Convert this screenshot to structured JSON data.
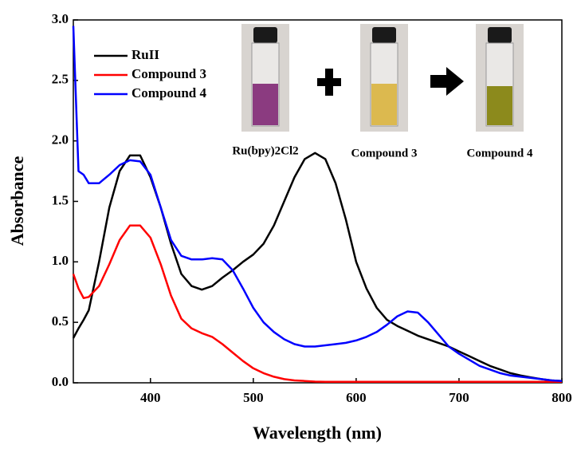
{
  "chart_data": {
    "type": "line",
    "x_label": "Wavelength (nm)",
    "y_label": "Absorbance",
    "x": [
      325,
      330,
      335,
      340,
      350,
      360,
      370,
      380,
      390,
      400,
      410,
      420,
      430,
      440,
      450,
      460,
      470,
      480,
      490,
      500,
      510,
      520,
      530,
      540,
      550,
      560,
      570,
      580,
      590,
      600,
      610,
      620,
      630,
      640,
      650,
      660,
      670,
      680,
      690,
      700,
      710,
      720,
      730,
      740,
      750,
      760,
      770,
      780,
      790,
      800
    ],
    "series": [
      {
        "name": "RuII",
        "color": "#000000",
        "values": [
          0.37,
          0.45,
          0.52,
          0.6,
          1.0,
          1.45,
          1.75,
          1.88,
          1.88,
          1.7,
          1.45,
          1.15,
          0.9,
          0.8,
          0.77,
          0.8,
          0.87,
          0.93,
          1.0,
          1.06,
          1.15,
          1.3,
          1.5,
          1.7,
          1.85,
          1.9,
          1.85,
          1.65,
          1.35,
          1.0,
          0.78,
          0.62,
          0.52,
          0.47,
          0.43,
          0.39,
          0.36,
          0.33,
          0.3,
          0.26,
          0.22,
          0.18,
          0.14,
          0.11,
          0.08,
          0.06,
          0.045,
          0.03,
          0.02,
          0.015
        ]
      },
      {
        "name": "Compound 3",
        "color": "#ff0000",
        "values": [
          0.9,
          0.78,
          0.7,
          0.71,
          0.8,
          0.98,
          1.18,
          1.3,
          1.3,
          1.2,
          0.98,
          0.72,
          0.53,
          0.45,
          0.41,
          0.38,
          0.32,
          0.25,
          0.18,
          0.12,
          0.08,
          0.05,
          0.03,
          0.02,
          0.015,
          0.01,
          0.008,
          0.008,
          0.008,
          0.008,
          0.008,
          0.008,
          0.008,
          0.008,
          0.008,
          0.008,
          0.008,
          0.008,
          0.008,
          0.008,
          0.008,
          0.008,
          0.008,
          0.008,
          0.008,
          0.008,
          0.008,
          0.008,
          0.008,
          0.008
        ]
      },
      {
        "name": "Compound 4",
        "color": "#0000ff",
        "values": [
          2.95,
          1.75,
          1.72,
          1.65,
          1.65,
          1.72,
          1.8,
          1.84,
          1.83,
          1.72,
          1.45,
          1.18,
          1.05,
          1.02,
          1.02,
          1.03,
          1.02,
          0.93,
          0.78,
          0.62,
          0.5,
          0.42,
          0.36,
          0.32,
          0.3,
          0.3,
          0.31,
          0.32,
          0.33,
          0.35,
          0.38,
          0.42,
          0.48,
          0.55,
          0.59,
          0.58,
          0.5,
          0.4,
          0.3,
          0.24,
          0.19,
          0.14,
          0.11,
          0.08,
          0.06,
          0.05,
          0.04,
          0.03,
          0.02,
          0.015
        ]
      }
    ],
    "xlim": [
      325,
      800
    ],
    "xticks": [
      400,
      500,
      600,
      700,
      800
    ],
    "ylim": [
      0,
      3
    ],
    "yticks": [
      {
        "value": 0,
        "label": "0.0"
      },
      0.5,
      {
        "value": 1,
        "label": "1.0"
      },
      1.5,
      {
        "value": 2,
        "label": "2.0"
      },
      2.5,
      {
        "value": 3,
        "label": "3.0"
      }
    ],
    "grid": false,
    "annotations": [
      "Ru(bpy)2Cl2",
      "Compound 3",
      "Compound 4"
    ]
  }
}
